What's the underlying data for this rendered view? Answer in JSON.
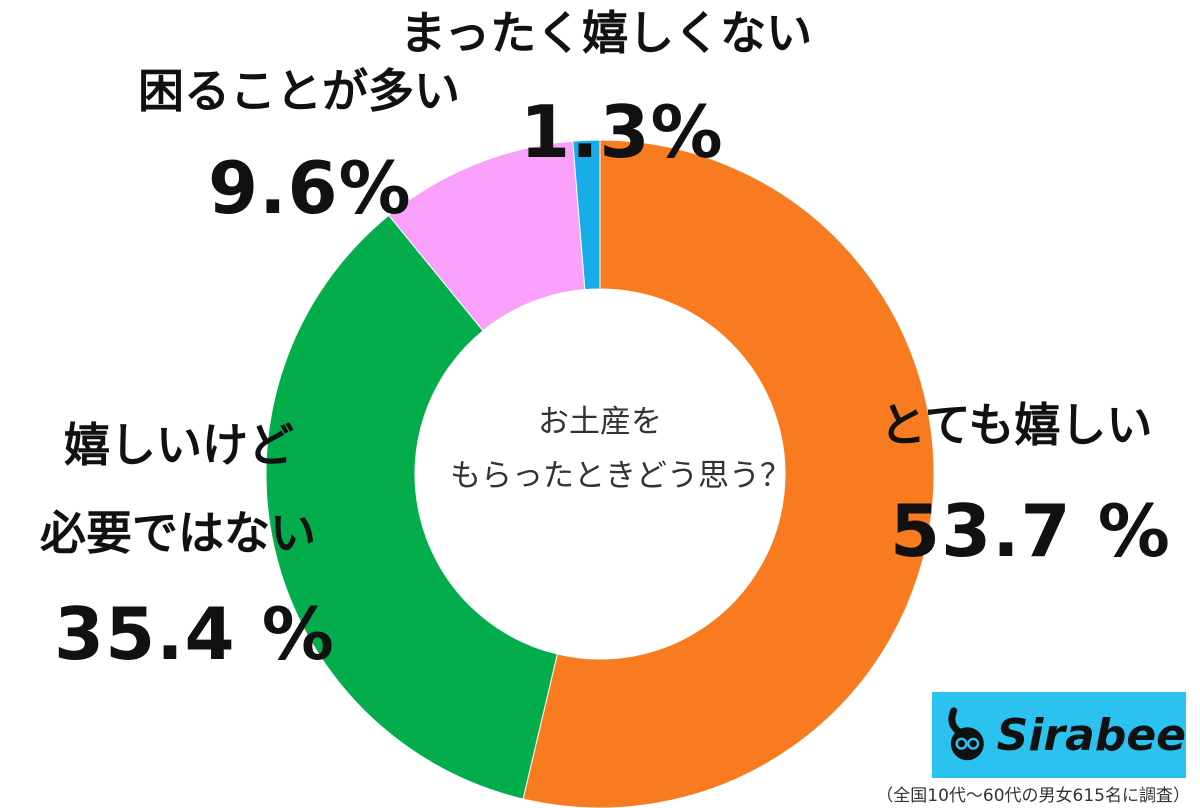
{
  "chart_data": {
    "type": "pie",
    "donut": true,
    "center_text": [
      "お土産を",
      "もらったときどう思う？"
    ],
    "slices": [
      {
        "label": "とても嬉しい",
        "value": 53.7,
        "display": "53.7 %",
        "color": "#f97b1f"
      },
      {
        "label_lines": [
          "嬉しいけど",
          "必要ではない"
        ],
        "value": 35.4,
        "display": "35.4 %",
        "color": "#04ad4c"
      },
      {
        "label": "困ることが多い",
        "value": 9.6,
        "display": "9.6%",
        "color": "#f9a0fb"
      },
      {
        "label": "まったく嬉しくない",
        "value": 1.3,
        "display": "1.3%",
        "color": "#17aee8"
      }
    ]
  },
  "logo": {
    "text": "Sirabee"
  },
  "footnote": "（全国10代〜60代の男女615名に調査）"
}
